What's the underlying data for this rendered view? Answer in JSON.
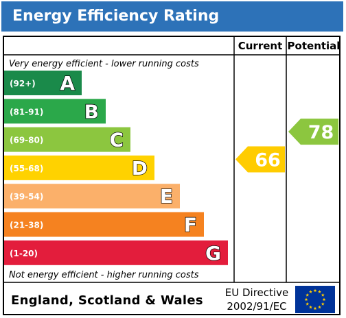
{
  "header": {
    "title": "Energy Efficiency Rating"
  },
  "columns": {
    "current": "Current",
    "potential": "Potential"
  },
  "notes": {
    "top": "Very energy efficient - lower running costs",
    "bottom": "Not energy efficient - higher running costs"
  },
  "footer": {
    "country": "England, Scotland & Wales",
    "directive_line1": "EU Directive",
    "directive_line2": "2002/91/EC"
  },
  "chart_data": {
    "type": "bar",
    "title": "Energy Efficiency Rating",
    "categories": [
      "A",
      "B",
      "C",
      "D",
      "E",
      "F",
      "G"
    ],
    "ranges": [
      "(92+)",
      "(81-91)",
      "(69-80)",
      "(55-68)",
      "(39-54)",
      "(21-38)",
      "(1-20)"
    ],
    "colors": [
      "#1a8a4a",
      "#2ba84a",
      "#8cc63f",
      "#ffd200",
      "#fbb06a",
      "#f58220",
      "#e31d3c"
    ],
    "current": {
      "label": "Current",
      "value": 66,
      "band": "D",
      "color": "#ffcc00"
    },
    "potential": {
      "label": "Potential",
      "value": 78,
      "band": "C",
      "color": "#8cc63f"
    }
  }
}
